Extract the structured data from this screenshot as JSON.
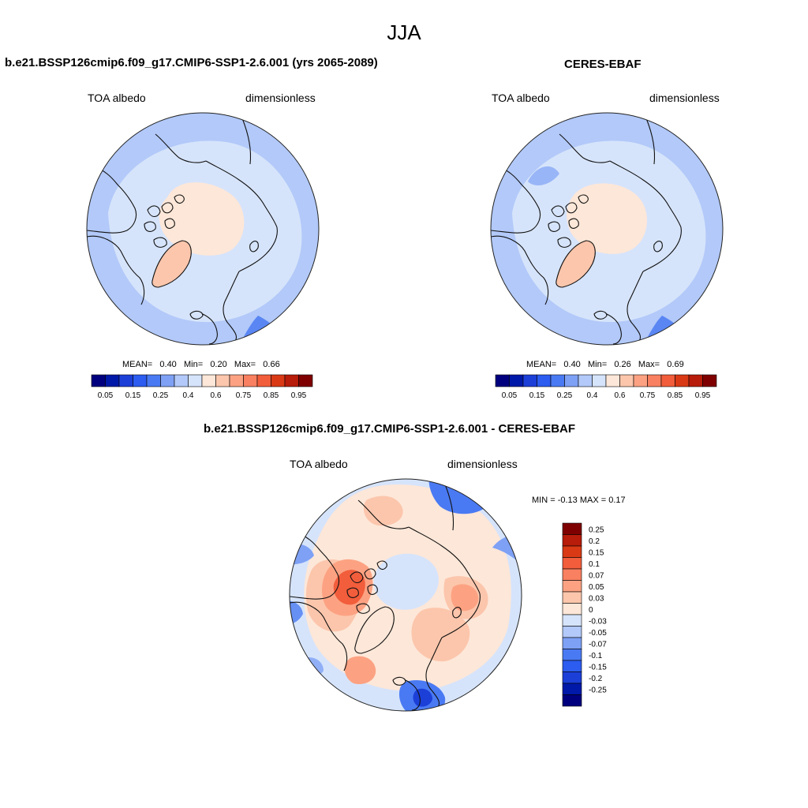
{
  "figure": {
    "season": "JJA"
  },
  "panels": [
    {
      "title": "b.e21.BSSP126cmip6.f09_g17.CMIP6-SSP1-2.6.001 (yrs 2065-2089)",
      "var_label": "TOA albedo",
      "units": "dimensionless",
      "stats": {
        "mean_label": "MEAN=",
        "mean": "0.40",
        "min_label": "Min=",
        "min": "0.20",
        "max_label": "Max=",
        "max": "0.66"
      }
    },
    {
      "title": "CERES-EBAF",
      "var_label": "TOA albedo",
      "units": "dimensionless",
      "stats": {
        "mean_label": "MEAN=",
        "mean": "0.40",
        "min_label": "Min=",
        "min": "0.26",
        "max_label": "Max=",
        "max": "0.69"
      }
    },
    {
      "title": "b.e21.BSSP126cmip6.f09_g17.CMIP6-SSP1-2.6.001 - CERES-EBAF",
      "var_label": "TOA albedo",
      "units": "dimensionless",
      "stats_text": "MIN =  -0.13 MAX =  0.17"
    }
  ],
  "colorbar_abs": {
    "colors": [
      "#00007f",
      "#0019a8",
      "#1c3fd8",
      "#2c5cf0",
      "#4a7af3",
      "#7ea1f5",
      "#b2c9f9",
      "#d6e4fb",
      "#fde7d8",
      "#fcc6ac",
      "#fca282",
      "#f98060",
      "#f25d3b",
      "#d93a15",
      "#b81c0a",
      "#7f0000"
    ],
    "tick_labels": [
      "0.05",
      "0.15",
      "0.25",
      "0.4",
      "0.6",
      "0.75",
      "0.85",
      "0.95"
    ],
    "tick_positions": [
      1,
      3,
      5,
      7,
      9,
      11,
      13,
      15
    ]
  },
  "colorbar_diff": {
    "colors": [
      "#7f0000",
      "#b81c0a",
      "#d93a15",
      "#f25d3b",
      "#f98060",
      "#fca282",
      "#fcc6ac",
      "#fde7d8",
      "#d6e4fb",
      "#b2c9f9",
      "#7ea1f5",
      "#4a7af3",
      "#2c5cf0",
      "#1c3fd8",
      "#0019a8",
      "#00007f"
    ],
    "tick_labels": [
      "0.25",
      "0.2",
      "0.15",
      "0.1",
      "0.07",
      "0.05",
      "0.03",
      "0",
      "-0.03",
      "-0.05",
      "-0.07",
      "-0.1",
      "-0.15",
      "-0.2",
      "-0.25"
    ]
  },
  "map_colors": {
    "ocean_base": "#b2c9f9",
    "light_blue": "#d6e4fb",
    "mid_blue": "#7ea1f5",
    "dark_blue": "#4a7af3",
    "peach": "#fde7d8",
    "salmon": "#fcc6ac",
    "orange": "#fca282",
    "red": "#f25d3b",
    "deep_red": "#d93a15"
  }
}
